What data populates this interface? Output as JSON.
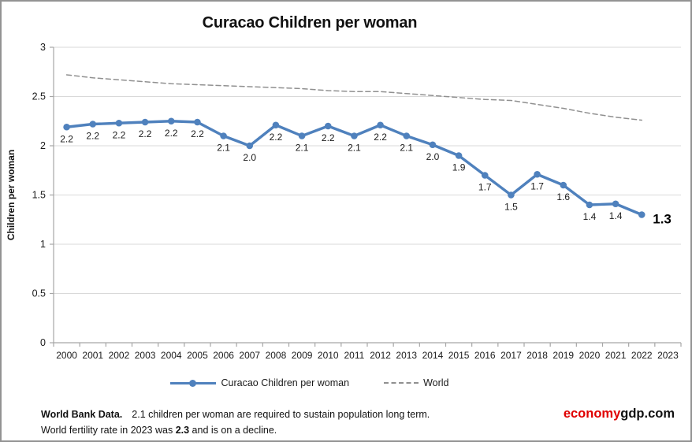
{
  "chart": {
    "title": "Curacao Children per woman",
    "y_axis_title": "Children per woman",
    "colors": {
      "series_blue": "#4F81BD",
      "world_gray": "#909090",
      "gridline": "#D9D9D9",
      "axis": "#A6A6A6",
      "label_text": "#1a1a1a"
    },
    "legend": {
      "curacao_label": "Curacao Children per woman",
      "world_label": "World"
    }
  },
  "chart_data": {
    "type": "line",
    "title": "Curacao Children per woman",
    "ylabel": "Children per woman",
    "xlabel": "",
    "ylim": [
      0,
      3
    ],
    "y_ticks": [
      0,
      0.5,
      1,
      1.5,
      2,
      2.5,
      3
    ],
    "y_tick_labels": [
      "0",
      "0.5",
      "1",
      "1.5",
      "2",
      "2.5",
      "3"
    ],
    "x_axis_labels": [
      "2000",
      "2001",
      "2002",
      "2003",
      "2004",
      "2005",
      "2006",
      "2007",
      "2008",
      "2009",
      "2010",
      "2011",
      "2012",
      "2013",
      "2014",
      "2015",
      "2016",
      "2017",
      "2018",
      "2019",
      "2020",
      "2021",
      "2022",
      "2023"
    ],
    "grid": true,
    "legend_position": "bottom",
    "years": [
      2000,
      2001,
      2002,
      2003,
      2004,
      2005,
      2006,
      2007,
      2008,
      2009,
      2010,
      2011,
      2012,
      2013,
      2014,
      2015,
      2016,
      2017,
      2018,
      2019,
      2020,
      2021,
      2022
    ],
    "series": [
      {
        "name": "Curacao Children per woman",
        "color": "#4F81BD",
        "dashed": false,
        "marker": true,
        "line_width": 3.4,
        "values": [
          2.2,
          2.2,
          2.2,
          2.2,
          2.2,
          2.2,
          2.1,
          2.0,
          2.2,
          2.1,
          2.2,
          2.1,
          2.2,
          2.1,
          2.0,
          1.9,
          1.7,
          1.5,
          1.7,
          1.6,
          1.4,
          1.4,
          1.3
        ],
        "plot_values": [
          2.19,
          2.22,
          2.23,
          2.24,
          2.25,
          2.24,
          2.1,
          2.0,
          2.21,
          2.1,
          2.2,
          2.1,
          2.21,
          2.1,
          2.01,
          1.9,
          1.7,
          1.5,
          1.71,
          1.6,
          1.4,
          1.41,
          1.3
        ],
        "data_labels": [
          "2.2",
          "2.2",
          "2.2",
          "2.2",
          "2.2",
          "2.2",
          "2.1",
          "2.0",
          "2.2",
          "2.1",
          "2.2",
          "2.1",
          "2.2",
          "2.1",
          "2.0",
          "1.9",
          "1.7",
          "1.5",
          "1.7",
          "1.6",
          "1.4",
          "1.4",
          "1.3"
        ],
        "last_label_emphasis": true
      },
      {
        "name": "World",
        "color": "#909090",
        "dashed": true,
        "marker": false,
        "line_width": 1.5,
        "values": [
          2.72,
          2.69,
          2.67,
          2.65,
          2.63,
          2.62,
          2.61,
          2.6,
          2.59,
          2.58,
          2.56,
          2.55,
          2.55,
          2.53,
          2.51,
          2.49,
          2.47,
          2.46,
          2.42,
          2.38,
          2.33,
          2.29,
          2.26
        ],
        "data_labels": [],
        "last_label_emphasis": false
      }
    ]
  },
  "footer": {
    "source_bold": "World Bank Data.",
    "line1": "2.1 children per woman are required to sustain population long term.",
    "line2_prefix": "World fertility rate in 2023 was ",
    "line2_bold": "2.3",
    "line2_suffix": " and is on a decline."
  },
  "brand": {
    "highlight": "economy",
    "rest": "gdp.com"
  }
}
